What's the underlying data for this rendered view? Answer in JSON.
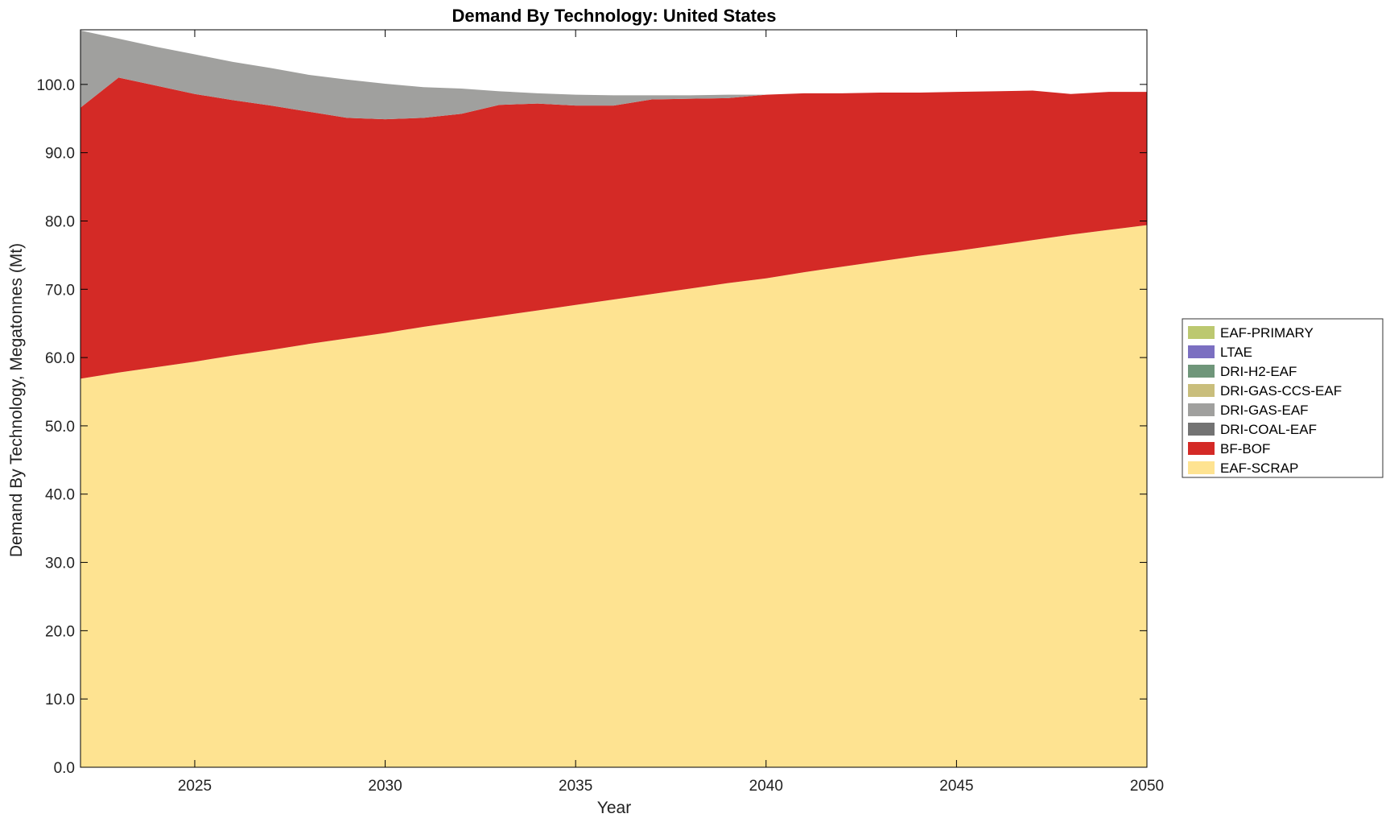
{
  "chart_data": {
    "type": "area",
    "stacked": true,
    "title": "Demand By Technology: United States",
    "xlabel": "Year",
    "ylabel": "Demand By Technology, Megatonnes (Mt)",
    "xlim": [
      2022,
      2050
    ],
    "ylim": [
      0,
      108
    ],
    "x_ticks": [
      "2025",
      "2030",
      "2035",
      "2040",
      "2045",
      "2050"
    ],
    "y_ticks": [
      "0.0",
      "10.0",
      "20.0",
      "30.0",
      "40.0",
      "50.0",
      "60.0",
      "70.0",
      "80.0",
      "90.0",
      "100.0"
    ],
    "grid": false,
    "legend_position": "right",
    "x": [
      2022,
      2023,
      2024,
      2025,
      2026,
      2027,
      2028,
      2029,
      2030,
      2031,
      2032,
      2033,
      2034,
      2035,
      2036,
      2037,
      2038,
      2039,
      2040,
      2041,
      2042,
      2043,
      2044,
      2045,
      2046,
      2047,
      2048,
      2049,
      2050
    ],
    "series": [
      {
        "name": "EAF-SCRAP",
        "color": "#fee391",
        "values": [
          56.9,
          57.8,
          58.6,
          59.4,
          60.3,
          61.1,
          62.0,
          62.8,
          63.6,
          64.5,
          65.3,
          66.1,
          66.9,
          67.7,
          68.5,
          69.3,
          70.1,
          70.9,
          71.6,
          72.5,
          73.3,
          74.1,
          74.9,
          75.6,
          76.4,
          77.2,
          78.0,
          78.7,
          79.4
        ]
      },
      {
        "name": "BF-BOF",
        "color": "#d42a26",
        "values": [
          39.7,
          43.2,
          41.2,
          39.2,
          37.4,
          35.8,
          34.0,
          32.3,
          31.3,
          30.6,
          30.4,
          30.9,
          30.3,
          29.2,
          28.4,
          28.5,
          27.8,
          27.1,
          26.9,
          26.2,
          25.4,
          24.7,
          23.9,
          23.3,
          22.6,
          21.9,
          20.6,
          20.2,
          19.5
        ]
      },
      {
        "name": "DRI-COAL-EAF",
        "color": "#737373",
        "values": [
          0,
          0,
          0,
          0,
          0,
          0,
          0,
          0,
          0,
          0,
          0,
          0,
          0,
          0,
          0,
          0,
          0,
          0,
          0,
          0,
          0,
          0,
          0,
          0,
          0,
          0,
          0,
          0,
          0
        ]
      },
      {
        "name": "DRI-GAS-EAF",
        "color": "#a0a09e",
        "values": [
          11.3,
          5.7,
          5.7,
          5.8,
          5.6,
          5.5,
          5.4,
          5.6,
          5.2,
          4.5,
          3.7,
          2.0,
          1.5,
          1.6,
          1.5,
          0.6,
          0.5,
          0.5,
          0.0,
          0,
          0,
          0,
          0,
          0,
          0,
          0,
          0,
          0,
          0
        ]
      },
      {
        "name": "DRI-GAS-CCS-EAF",
        "color": "#c9be7c",
        "values": [
          0,
          0,
          0,
          0,
          0,
          0,
          0,
          0,
          0,
          0,
          0,
          0,
          0,
          0,
          0,
          0,
          0,
          0,
          0,
          0,
          0,
          0,
          0,
          0,
          0,
          0,
          0,
          0,
          0
        ]
      },
      {
        "name": "DRI-H2-EAF",
        "color": "#6f967a",
        "values": [
          0,
          0,
          0,
          0,
          0,
          0,
          0,
          0,
          0,
          0,
          0,
          0,
          0,
          0,
          0,
          0,
          0,
          0,
          0,
          0,
          0,
          0,
          0,
          0,
          0,
          0,
          0,
          0,
          0
        ]
      },
      {
        "name": "LTAE",
        "color": "#7b6fc1",
        "values": [
          0,
          0,
          0,
          0,
          0,
          0,
          0,
          0,
          0,
          0,
          0,
          0,
          0,
          0,
          0,
          0,
          0,
          0,
          0,
          0,
          0,
          0,
          0,
          0,
          0,
          0,
          0,
          0,
          0
        ]
      },
      {
        "name": "EAF-PRIMARY",
        "color": "#bcc870",
        "values": [
          0,
          0,
          0,
          0,
          0,
          0,
          0,
          0,
          0,
          0,
          0,
          0,
          0,
          0,
          0,
          0,
          0,
          0,
          0,
          0,
          0,
          0,
          0,
          0,
          0,
          0,
          0,
          0,
          0
        ]
      }
    ],
    "legend_order": [
      "EAF-PRIMARY",
      "LTAE",
      "DRI-H2-EAF",
      "DRI-GAS-CCS-EAF",
      "DRI-GAS-EAF",
      "DRI-COAL-EAF",
      "BF-BOF",
      "EAF-SCRAP"
    ]
  }
}
